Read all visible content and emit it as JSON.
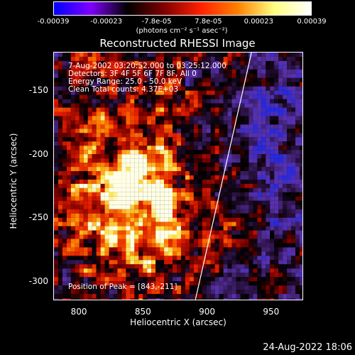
{
  "colorbar": {
    "ticks": [
      "-0.00039",
      "-0.00023",
      "-7.8e-05",
      "7.8e-05",
      "0.00023",
      "0.00039"
    ],
    "tick_values": [
      -0.00039,
      -0.00023,
      -7.8e-05,
      7.8e-05,
      0.00023,
      0.00039
    ],
    "units": "(photons cm⁻² s⁻¹ asec⁻²)",
    "colors": [
      "#0000ff",
      "#8000ff",
      "#000000",
      "#800000",
      "#ff2000",
      "#ff8000",
      "#ffff80",
      "#ffffff"
    ]
  },
  "chart_data": {
    "type": "heatmap",
    "title": "Reconstructed RHESSI Image",
    "xlabel": "Heliocentric X (arcsec)",
    "ylabel": "Heliocentric Y (arcsec)",
    "xlim": [
      780,
      975
    ],
    "ylim": [
      -315,
      -120
    ],
    "xticks": [
      "800",
      "850",
      "900",
      "950"
    ],
    "xtick_values": [
      800,
      850,
      900,
      950
    ],
    "yticks": [
      "-150",
      "-200",
      "-250",
      "-300"
    ],
    "ytick_values": [
      -150,
      -200,
      -250,
      -300
    ],
    "peak": [
      843,
      -211
    ],
    "limb_line": [
      [
        891,
        -315
      ],
      [
        935,
        -120
      ]
    ]
  },
  "annotations": {
    "time": "7-Aug-2002 03:20:52.000  to  03:25:12.000",
    "detectors": "Detectors: 3F 4F 5F 6F 7F 8F, All 0",
    "energy": "Energy Range: 25.0 - 50.0 keV",
    "method": "Clean     Total counts: 4.37E+03",
    "peak": "Position of Peak = [843,-211]"
  },
  "footer_date": "24-Aug-2022 18:06"
}
